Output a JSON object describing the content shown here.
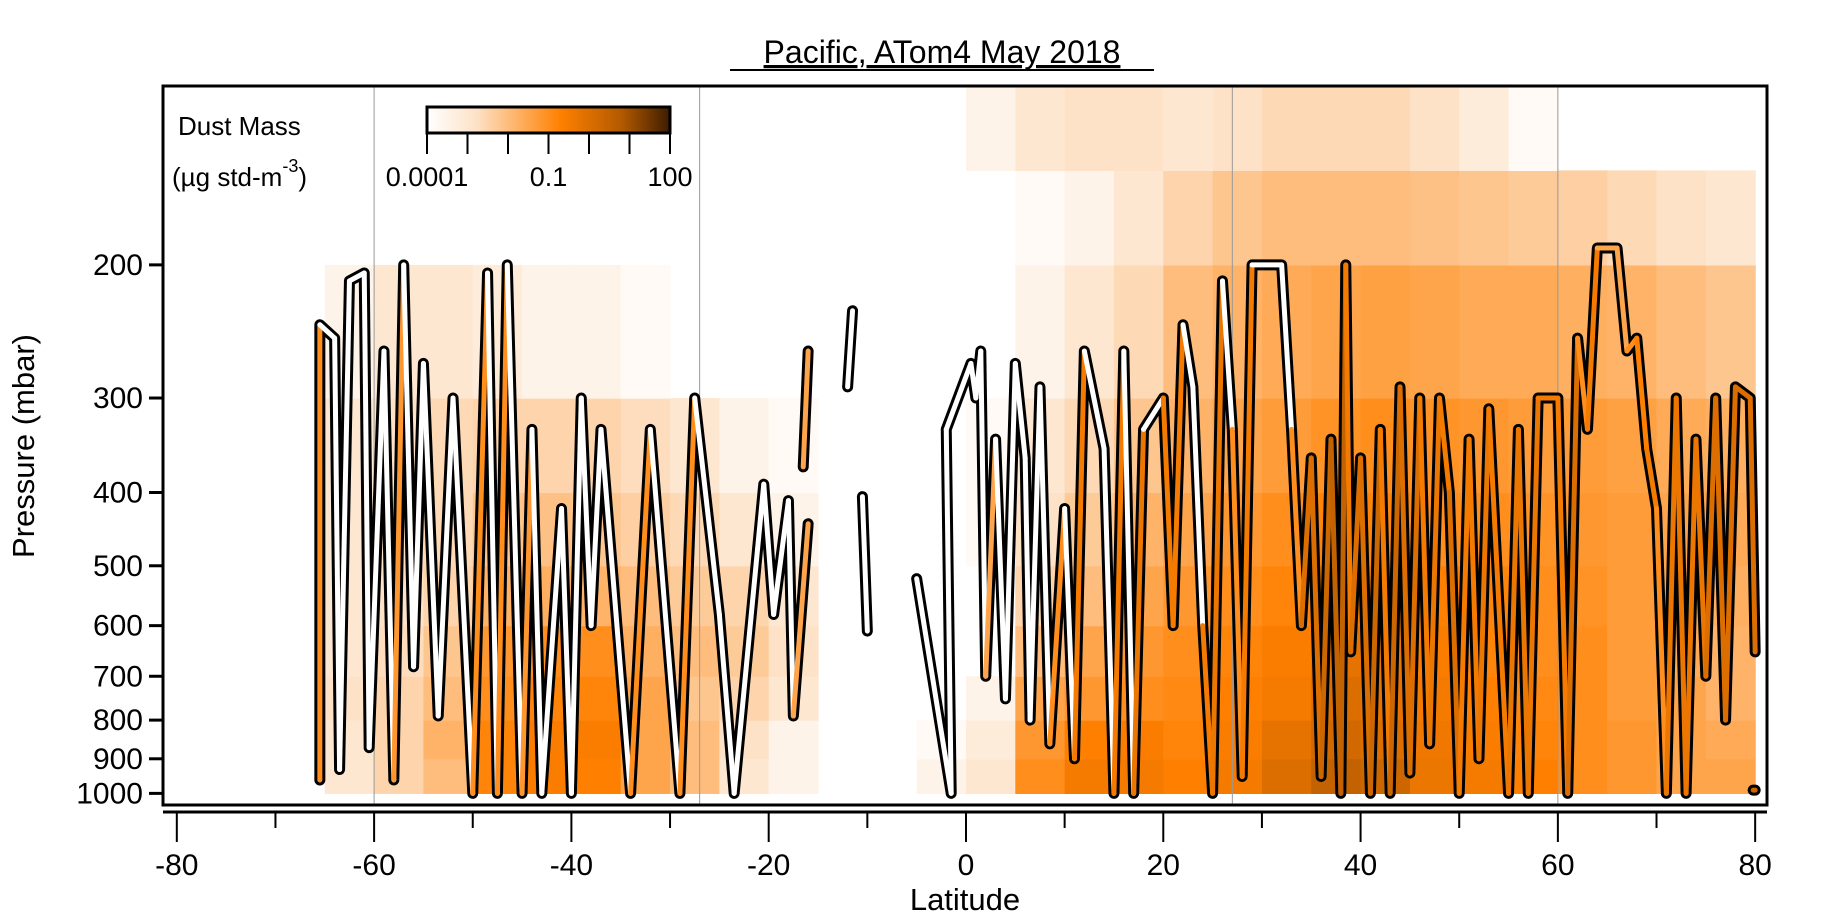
{
  "chart_data": {
    "type": "heatmap",
    "title": "Pacific, ATom4 May 2018",
    "xlabel": "Latitude",
    "ylabel": "Pressure (mbar)",
    "xlim": [
      -81.4,
      81.2
    ],
    "ylim": [
      1036,
      116
    ],
    "yscale": "log",
    "x_ticks": [
      -80,
      -60,
      -40,
      -20,
      0,
      20,
      40,
      60,
      80
    ],
    "x_minor_ticks": [
      -70,
      -50,
      -30,
      -10,
      10,
      30,
      50,
      70
    ],
    "y_ticks": [
      200,
      300,
      400,
      500,
      600,
      700,
      800,
      900,
      1000
    ],
    "vertical_gridlines": [
      -60,
      -27,
      27,
      60
    ],
    "colorbar": {
      "title": "Dust Mass",
      "units_prefix": "(µg std-m",
      "units_exp": "-3",
      "units_suffix": ")",
      "scale": "log10",
      "range": [
        -4,
        2
      ],
      "tick_labels": [
        "0.0001",
        "0.1",
        "100"
      ],
      "tick_label_values": [
        -4,
        -1,
        2
      ],
      "colors": [
        "#ffffff",
        "#fde2c8",
        "#ff8000",
        "#b35a00",
        "#3d1c00"
      ]
    },
    "grid": {
      "lat_centers": [
        -62.5,
        -57.5,
        -52.5,
        -47.5,
        -42.5,
        -37.5,
        -32.5,
        -27.5,
        -22.5,
        -17.5,
        -12.5,
        -7.5,
        -2.5,
        2.5,
        7.5,
        12.5,
        17.5,
        22.5,
        27.5,
        32.5,
        37.5,
        42.5,
        47.5,
        52.5,
        57.5,
        62.5,
        67.5,
        72.5,
        77.5
      ],
      "pressure_bands": [
        [
          1000,
          900
        ],
        [
          900,
          800
        ],
        [
          800,
          700
        ],
        [
          700,
          600
        ],
        [
          600,
          500
        ],
        [
          500,
          400
        ],
        [
          400,
          300
        ],
        [
          300,
          200
        ],
        [
          200,
          150
        ],
        [
          150,
          116
        ]
      ],
      "log10_values": [
        [
          -3,
          -2.5,
          -2,
          -0.8,
          -0.6,
          -0.7,
          -1.5,
          -2,
          -3,
          -3.5,
          null,
          null,
          -3.5,
          -3,
          -1,
          -0.5,
          -0.5,
          -0.7,
          -0.5,
          0,
          0.5,
          0.3,
          -0.3,
          -0.5,
          -0.7,
          -1,
          -1.2,
          -1.5,
          -1.5
        ],
        [
          -3,
          -2.5,
          -1.8,
          -0.8,
          -0.6,
          -0.6,
          -1.5,
          -2,
          -2.8,
          -3.5,
          null,
          null,
          -3.8,
          -3.2,
          -1.2,
          -0.7,
          -0.6,
          -0.8,
          -0.6,
          -0.2,
          0.2,
          0,
          -0.4,
          -0.6,
          -0.8,
          -1,
          -1.2,
          -1.5,
          -1.6
        ],
        [
          -2.8,
          -2.5,
          -2,
          -1,
          -0.8,
          -0.8,
          -1.5,
          -2.2,
          -2.5,
          -3,
          null,
          null,
          null,
          -3.5,
          -1.5,
          -1.2,
          -1,
          -0.9,
          -0.7,
          -0.5,
          0,
          -0.2,
          -0.5,
          -0.7,
          -0.9,
          -1,
          -1.3,
          -1.5,
          -1.8
        ],
        [
          -3,
          -2.7,
          -2.2,
          -1.2,
          -1,
          -1,
          -1.7,
          -2,
          -2.3,
          -2.8,
          null,
          null,
          null,
          null,
          -2,
          -1.5,
          -1.2,
          -1,
          -0.8,
          -0.6,
          -0.2,
          -0.3,
          -0.6,
          -0.8,
          -1,
          -1,
          -1.3,
          -1.6,
          -1.8
        ],
        [
          -3,
          -2.8,
          -2.5,
          -1.8,
          -1.7,
          -1.8,
          -2,
          -2.3,
          -2.5,
          -3,
          null,
          null,
          null,
          null,
          -2.5,
          -2,
          -1.5,
          -1.2,
          -1,
          -0.8,
          -0.5,
          -0.5,
          -0.7,
          -0.8,
          -1,
          -1.1,
          -1.3,
          -1.5,
          -1.7
        ],
        [
          -3,
          -2.8,
          -2.6,
          -2.2,
          -2.1,
          -2.2,
          -2.4,
          -2.6,
          -3,
          -3.5,
          null,
          null,
          null,
          -3.8,
          -2.8,
          -2.3,
          -1.8,
          -1.5,
          -1.2,
          -1,
          -0.8,
          -0.8,
          -1,
          -1,
          -1.1,
          -1.2,
          -1.3,
          -1.5,
          -1.6
        ],
        [
          -3,
          -2.8,
          -2.6,
          -2.5,
          -2.5,
          -2.5,
          -2.7,
          -3,
          -3.5,
          -3.8,
          null,
          null,
          null,
          -3.8,
          -3,
          -2.6,
          -2.2,
          -1.8,
          -1.5,
          -1.3,
          -1.1,
          -1,
          -1.1,
          -1.2,
          -1.3,
          -1.3,
          -1.4,
          -1.6,
          -1.7
        ],
        [
          -3.5,
          -3,
          -3,
          -3.2,
          -3.5,
          -3.5,
          -3.8,
          null,
          null,
          null,
          null,
          null,
          null,
          null,
          -3.5,
          -3,
          -2.6,
          -2,
          -1.8,
          -1.6,
          -1.5,
          -1.4,
          -1.5,
          -1.6,
          -1.6,
          -1.7,
          -1.8,
          -2,
          -2.2
        ],
        [
          null,
          null,
          null,
          null,
          null,
          null,
          null,
          null,
          null,
          null,
          null,
          null,
          null,
          null,
          -3.8,
          -3.5,
          -3,
          -2.5,
          -2.2,
          -2,
          -2,
          -2,
          -2.1,
          -2.2,
          -2.3,
          -2.4,
          -2.6,
          -2.8,
          -3
        ],
        [
          null,
          null,
          null,
          null,
          null,
          null,
          null,
          null,
          null,
          null,
          null,
          null,
          null,
          -3.5,
          -3,
          -2.8,
          -2.8,
          -3,
          -2.8,
          -2.6,
          -2.6,
          -2.6,
          -2.8,
          -3.2,
          -3.8,
          null,
          null,
          null,
          null
        ]
      ]
    },
    "flight_track_segments": [
      [
        [
          -65.5,
          960,
          -1
        ],
        [
          -65.5,
          240,
          -4
        ],
        [
          -64,
          250,
          -4
        ],
        [
          -63.5,
          930,
          -4
        ],
        [
          -62.5,
          210,
          -4
        ],
        [
          -61,
          205,
          -4
        ],
        [
          -60.5,
          870,
          -4
        ],
        [
          -59,
          260,
          -4
        ],
        [
          -58,
          960,
          -1.2
        ],
        [
          -57,
          200,
          -4
        ],
        [
          -56,
          680,
          -4
        ],
        [
          -55,
          270,
          -4
        ],
        [
          -53.5,
          790,
          -4
        ],
        [
          -52,
          300,
          -4
        ],
        [
          -50,
          1000,
          -1
        ],
        [
          -48.5,
          205,
          -4
        ],
        [
          -47.5,
          1000,
          -1
        ],
        [
          -46.5,
          200,
          -4
        ],
        [
          -45,
          1000,
          -1.2
        ],
        [
          -44,
          330,
          -4
        ],
        [
          -43,
          1000,
          -4
        ],
        [
          -41,
          420,
          -4
        ],
        [
          -40,
          1000,
          -4
        ],
        [
          -39,
          300,
          -4
        ],
        [
          -38,
          600,
          -4
        ],
        [
          -37,
          330,
          -4
        ],
        [
          -34,
          1000,
          -1
        ],
        [
          -32,
          330,
          -4
        ],
        [
          -29,
          1000,
          -1
        ],
        [
          -27.5,
          300,
          -4
        ],
        [
          -25,
          580,
          -4
        ],
        [
          -23.5,
          1000,
          -4
        ],
        [
          -20.5,
          390,
          -4
        ],
        [
          -19.5,
          580,
          -4
        ],
        [
          -18,
          410,
          -4
        ],
        [
          -17.5,
          790,
          -1.5
        ],
        [
          -16,
          440,
          -4
        ]
      ],
      [
        [
          -16.5,
          370,
          -1.5
        ],
        [
          -16,
          260,
          -4
        ]
      ],
      [
        [
          -12,
          290,
          -4
        ],
        [
          -11.5,
          230,
          -4
        ]
      ],
      [
        [
          -10.5,
          405,
          -4
        ],
        [
          -10,
          610,
          -4
        ]
      ],
      [
        [
          -5,
          520,
          -4
        ],
        [
          -1.5,
          1000,
          -4
        ],
        [
          -2,
          330,
          -4
        ],
        [
          0.5,
          270,
          -4
        ],
        [
          1,
          300,
          -4
        ],
        [
          1.5,
          260,
          -4
        ],
        [
          2,
          700,
          -1.5
        ],
        [
          3,
          340,
          -4
        ],
        [
          4,
          750,
          -4
        ],
        [
          5,
          270,
          -4
        ],
        [
          6,
          360,
          -4
        ],
        [
          6.5,
          800,
          -4
        ],
        [
          7.5,
          290,
          -4
        ],
        [
          8.5,
          860,
          -1
        ],
        [
          10,
          420,
          -4
        ],
        [
          11,
          900,
          -0.5
        ],
        [
          12,
          260,
          -4
        ],
        [
          14,
          350,
          -4
        ],
        [
          15,
          1000,
          -0.5
        ],
        [
          16,
          260,
          -4
        ],
        [
          17,
          1000,
          -0.3
        ],
        [
          18,
          330,
          -4
        ],
        [
          20,
          300,
          -0.5
        ],
        [
          21,
          600,
          -0.5
        ],
        [
          22,
          240,
          -4
        ],
        [
          23,
          290,
          -4
        ],
        [
          24,
          600,
          -0.5
        ],
        [
          25,
          1000,
          -0.3
        ],
        [
          26,
          210,
          -4
        ],
        [
          27,
          330,
          -1
        ],
        [
          28,
          950,
          -0.5
        ],
        [
          29,
          200,
          -4
        ],
        [
          32,
          200,
          -4
        ],
        [
          33,
          330,
          -1
        ],
        [
          34,
          600,
          0
        ],
        [
          35,
          360,
          0
        ],
        [
          36,
          950,
          0.3
        ],
        [
          37,
          340,
          0.5
        ],
        [
          38,
          1000,
          0.5
        ],
        [
          38.5,
          200,
          -0.5
        ],
        [
          39,
          650,
          0
        ],
        [
          40,
          360,
          0
        ],
        [
          41,
          1000,
          0.3
        ],
        [
          42,
          330,
          -0.5
        ],
        [
          43,
          1000,
          0.3
        ],
        [
          44,
          290,
          0
        ],
        [
          45,
          940,
          0
        ],
        [
          46,
          300,
          -0.5
        ],
        [
          47,
          860,
          -0.3
        ],
        [
          48,
          300,
          -0.5
        ],
        [
          49,
          400,
          0
        ],
        [
          50,
          1000,
          -0.5
        ],
        [
          51,
          340,
          -0.5
        ],
        [
          52,
          900,
          -0.3
        ],
        [
          53,
          310,
          -0.5
        ],
        [
          55,
          1000,
          -0.3
        ],
        [
          56,
          330,
          -0.3
        ],
        [
          57,
          1000,
          -0.3
        ],
        [
          58,
          300,
          -0.5
        ],
        [
          60,
          300,
          -0.5
        ],
        [
          61,
          1000,
          0
        ],
        [
          62,
          250,
          -1
        ],
        [
          63,
          330,
          -0.5
        ],
        [
          64,
          190,
          -1.5
        ],
        [
          66,
          190,
          -1.5
        ],
        [
          67,
          260,
          -1
        ],
        [
          68,
          250,
          -0.7
        ],
        [
          69,
          350,
          -0.5
        ],
        [
          70,
          420,
          -1
        ],
        [
          71,
          1000,
          -0.3
        ],
        [
          72,
          300,
          -0.3
        ],
        [
          73,
          1000,
          -0.3
        ],
        [
          74,
          340,
          -0.3
        ],
        [
          75,
          700,
          0
        ],
        [
          76,
          300,
          0
        ],
        [
          77,
          800,
          0
        ],
        [
          78,
          290,
          0
        ],
        [
          79.5,
          300,
          0
        ],
        [
          80,
          650,
          0
        ]
      ],
      [
        [
          79.8,
          990,
          0.3
        ],
        [
          80,
          990,
          0.3
        ]
      ]
    ]
  }
}
